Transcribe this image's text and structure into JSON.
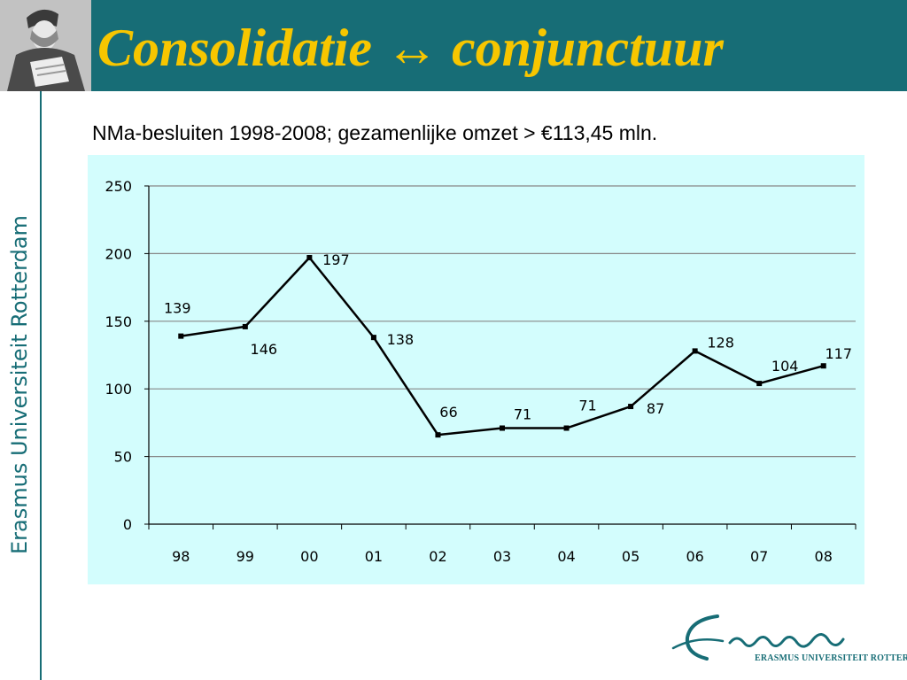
{
  "slide": {
    "title": "Consolidatie ↔ conjunctuur",
    "subtitle": "NMa-besluiten 1998-2008; gezamenlijke omzet > €113,45 mln.",
    "side_text": "Erasmus Universiteit Rotterdam",
    "logo_text": "ERASMUS UNIVERSITEIT ROTTERDAM",
    "colors": {
      "header": "#176d76",
      "title": "#f7c600",
      "chart_bg": "#d3fdfd"
    }
  },
  "chart_data": {
    "type": "line",
    "title": "",
    "xlabel": "",
    "ylabel": "",
    "categories": [
      "98",
      "99",
      "00",
      "01",
      "02",
      "03",
      "04",
      "05",
      "06",
      "07",
      "08"
    ],
    "series": [
      {
        "values": [
          139,
          146,
          197,
          138,
          66,
          71,
          71,
          87,
          128,
          104,
          117
        ]
      }
    ],
    "ylim": [
      0,
      250
    ],
    "yticks": [
      0,
      50,
      100,
      150,
      200,
      250
    ],
    "grid": true,
    "legend": "none",
    "data_labels": true
  }
}
